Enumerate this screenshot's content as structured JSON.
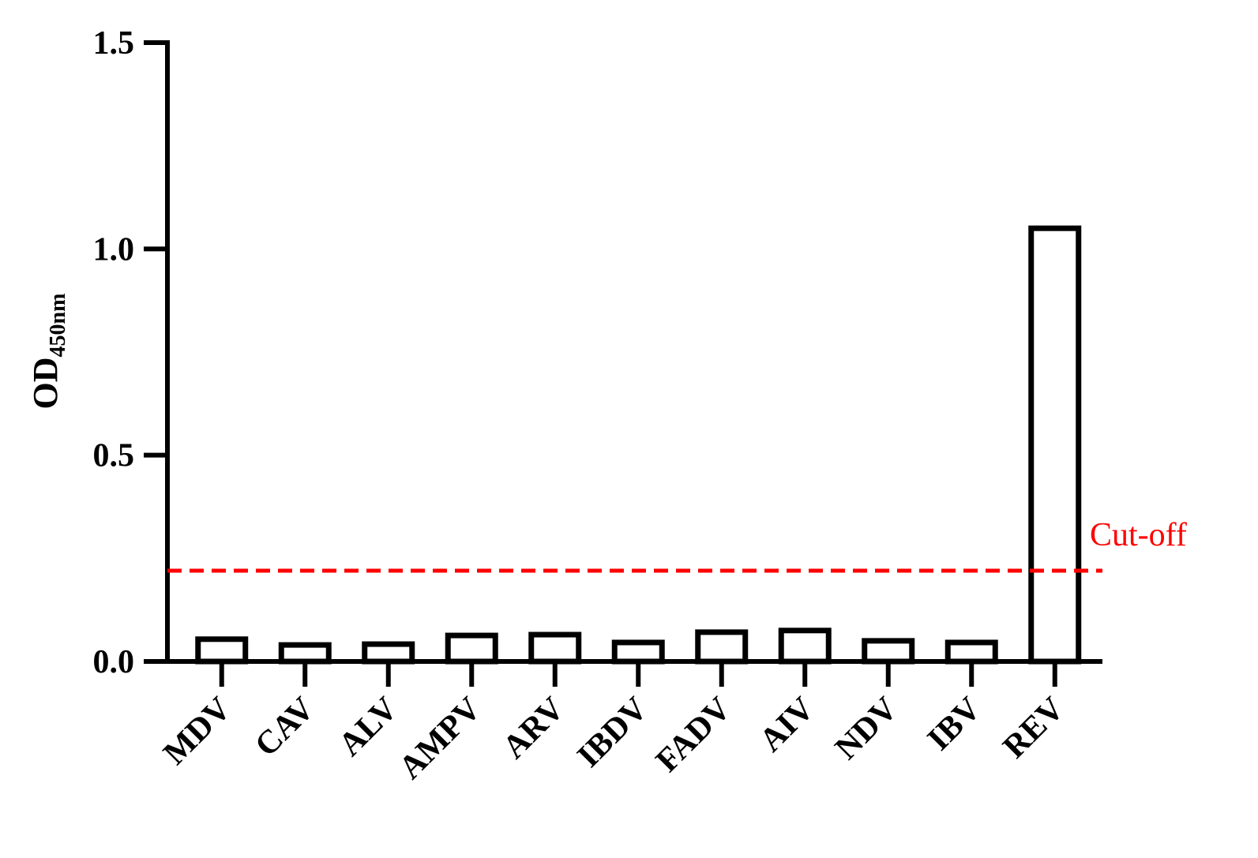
{
  "chart_data": {
    "type": "bar",
    "y_label": "OD",
    "y_label_sub": "450nm",
    "categories": [
      "MDV",
      "CAV",
      "ALV",
      "AMPV",
      "ARV",
      "IBDV",
      "FADV",
      "AIV",
      "NDV",
      "IBV",
      "REV"
    ],
    "values": [
      0.054,
      0.04,
      0.042,
      0.063,
      0.065,
      0.046,
      0.071,
      0.075,
      0.05,
      0.046,
      1.05
    ],
    "color": "#000000",
    "ylim": [
      0,
      1.5
    ],
    "yticks": [
      {
        "value": 0,
        "label": "0.0"
      },
      {
        "value": 0.5,
        "label": "0.5"
      },
      {
        "value": 1,
        "label": "1.0"
      },
      {
        "value": 1.5,
        "label": "1.5"
      }
    ],
    "cutoff": {
      "value": 0.22,
      "label": "Cut-off",
      "color": "#ff0000"
    }
  }
}
